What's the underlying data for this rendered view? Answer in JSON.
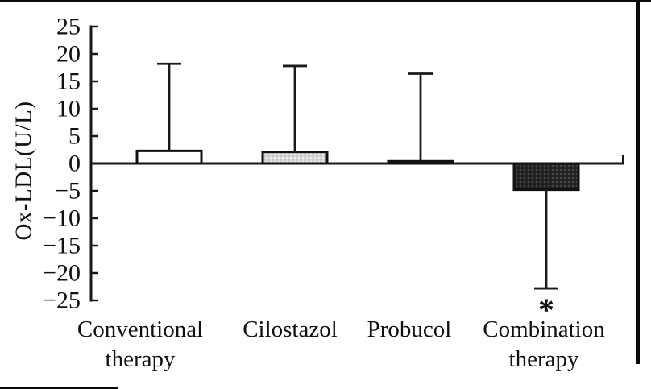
{
  "figure": {
    "ylabel": "Ox-LDL(U/L)",
    "significance_note": "*"
  },
  "chart_data": {
    "type": "bar",
    "title": "",
    "xlabel": "",
    "ylabel": "Ox-LDL(U/L)",
    "categories": [
      "Conventional therapy",
      "Cilostazol",
      "Probucol",
      "Combination therapy"
    ],
    "category_label_lines": [
      [
        "Conventional",
        "therapy"
      ],
      [
        "Cilostazol"
      ],
      [
        "Probucol"
      ],
      [
        "Combination",
        "therapy"
      ]
    ],
    "values": [
      2.3,
      2.1,
      0.4,
      -4.8
    ],
    "error_whisker_to": [
      18.2,
      17.8,
      16.4,
      -22.8
    ],
    "ylim": [
      -25,
      25
    ],
    "yticks": [
      25,
      20,
      15,
      10,
      5,
      0,
      -5,
      -10,
      -15,
      -20,
      -25
    ],
    "grid": false,
    "legend": null,
    "bar_styles": [
      {
        "fill": "#ffffff",
        "pattern": "none"
      },
      {
        "fill": "#d6d6d6",
        "pattern": "light-dots"
      },
      {
        "fill": "#2a2a2a",
        "pattern": "dark-dots"
      },
      {
        "fill": "#262626",
        "pattern": "dark-dots"
      }
    ],
    "annotations": [
      {
        "text": "*",
        "category_index": 3,
        "meaning": "significance-marker"
      }
    ]
  },
  "colors": {
    "background": "#ffffff",
    "axis": "#1a1a1a",
    "text": "#111111",
    "scan_border": "#0a0a0a",
    "bar_outline": "#111111"
  }
}
